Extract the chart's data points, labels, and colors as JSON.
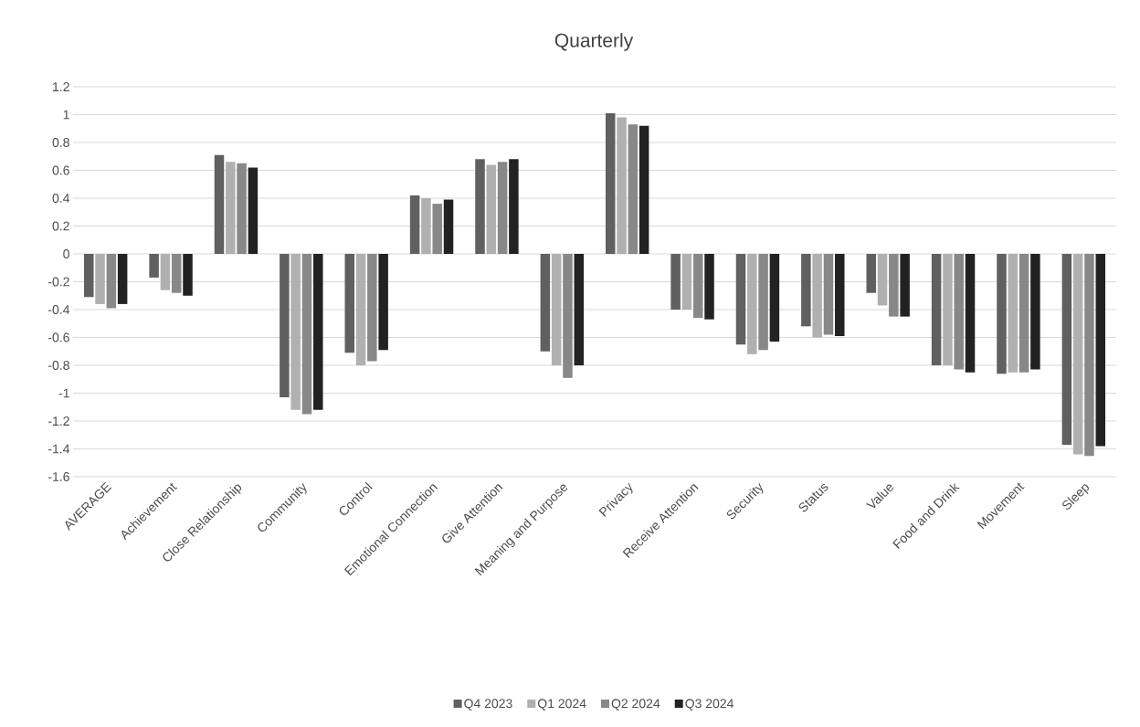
{
  "chart_data": {
    "type": "bar",
    "title": "Quarterly",
    "categories": [
      "AVERAGE",
      "Achievement",
      "Close Relationship",
      "Community",
      "Control",
      "Emotional Connection",
      "Give Attention",
      "Meaning and Purpose",
      "Privacy",
      "Receive Attention",
      "Security",
      "Status",
      "Value",
      "Food and Drink",
      "Movement",
      "Sleep"
    ],
    "series": [
      {
        "name": "Q4 2023",
        "color": "#606060",
        "values": [
          -0.31,
          -0.17,
          0.71,
          -1.03,
          -0.71,
          0.42,
          0.68,
          -0.7,
          1.01,
          -0.4,
          -0.65,
          -0.52,
          -0.28,
          -0.8,
          -0.86,
          -1.37
        ]
      },
      {
        "name": "Q1 2024",
        "color": "#b0b0b0",
        "values": [
          -0.36,
          -0.26,
          0.66,
          -1.12,
          -0.8,
          0.4,
          0.64,
          -0.8,
          0.98,
          -0.4,
          -0.72,
          -0.6,
          -0.37,
          -0.8,
          -0.85,
          -1.44
        ]
      },
      {
        "name": "Q2 2024",
        "color": "#888888",
        "values": [
          -0.39,
          -0.28,
          0.65,
          -1.15,
          -0.77,
          0.36,
          0.66,
          -0.89,
          0.93,
          -0.46,
          -0.69,
          -0.58,
          -0.45,
          -0.83,
          -0.85,
          -1.45
        ]
      },
      {
        "name": "Q3 2024",
        "color": "#222222",
        "values": [
          -0.36,
          -0.3,
          0.62,
          -1.12,
          -0.69,
          0.39,
          0.68,
          -0.8,
          0.92,
          -0.47,
          -0.63,
          -0.59,
          -0.45,
          -0.85,
          -0.83,
          -1.38
        ]
      }
    ],
    "ylim": [
      -1.6,
      1.2
    ],
    "yticks": [
      -1.6,
      -1.4,
      -1.2,
      -1,
      -0.8,
      -0.6,
      -0.4,
      -0.2,
      0,
      0.2,
      0.4,
      0.6,
      0.8,
      1,
      1.2
    ],
    "grid": "y",
    "legend": "bottom"
  }
}
